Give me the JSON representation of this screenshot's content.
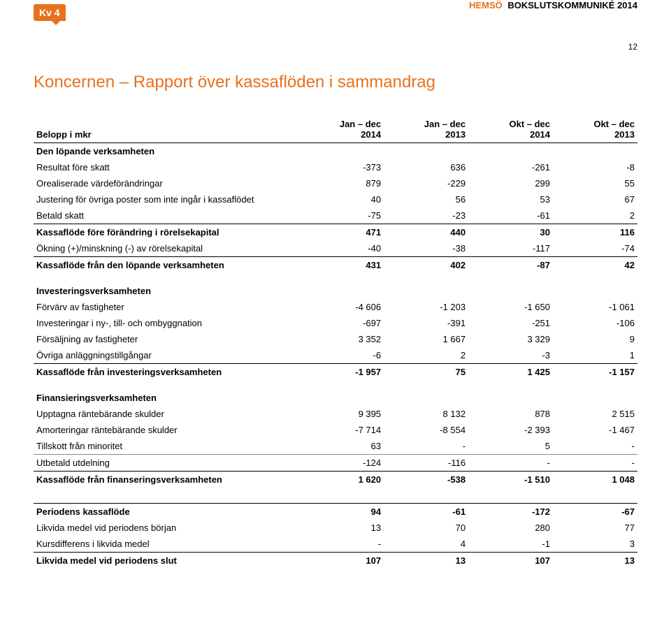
{
  "header": {
    "badge": "Kv 4",
    "company": "HEMSÖ",
    "report": "BOKSLUTSKOMMUNIKÉ 2014",
    "page_number": "12"
  },
  "title": "Koncernen – Rapport över kassaflöden i sammandrag",
  "columns": {
    "label": "Belopp i mkr",
    "c1a": "Jan – dec",
    "c1b": "2014",
    "c2a": "Jan – dec",
    "c2b": "2013",
    "c3a": "Okt – dec",
    "c3b": "2014",
    "c4a": "Okt – dec",
    "c4b": "2013"
  },
  "sections": [
    {
      "heading": "Den löpande verksamheten",
      "rows": [
        {
          "label": "Resultat före skatt",
          "v": [
            "-373",
            "636",
            "-261",
            "-8"
          ]
        },
        {
          "label": "Orealiserade värdeförändringar",
          "v": [
            "879",
            "-229",
            "299",
            "55"
          ]
        },
        {
          "label": "Justering för övriga poster som inte ingår i kassaflödet",
          "v": [
            "40",
            "56",
            "53",
            "67"
          ]
        },
        {
          "label": "Betald skatt",
          "v": [
            "-75",
            "-23",
            "-61",
            "2"
          ],
          "border_bottom": true
        },
        {
          "label": "Kassaflöde före förändring i rörelsekapital",
          "v": [
            "471",
            "440",
            "30",
            "116"
          ],
          "bold": true
        },
        {
          "label": "Ökning (+)/minskning (-) av rörelsekapital",
          "v": [
            "-40",
            "-38",
            "-117",
            "-74"
          ],
          "border_bottom": true
        },
        {
          "label": "Kassaflöde från den löpande verksamheten",
          "v": [
            "431",
            "402",
            "-87",
            "42"
          ],
          "bold": true
        }
      ]
    },
    {
      "heading": "Investeringsverksamheten",
      "rows": [
        {
          "label": "Förvärv av fastigheter",
          "v": [
            "-4 606",
            "-1 203",
            "-1 650",
            "-1 061"
          ]
        },
        {
          "label": "Investeringar i ny-, till- och ombyggnation",
          "v": [
            "-697",
            "-391",
            "-251",
            "-106"
          ]
        },
        {
          "label": "Försäljning av fastigheter",
          "v": [
            "3 352",
            "1 667",
            "3 329",
            "9"
          ]
        },
        {
          "label": "Övriga anläggningstillgångar",
          "v": [
            "-6",
            "2",
            "-3",
            "1"
          ],
          "border_bottom": true
        },
        {
          "label": "Kassaflöde från investeringsverksamheten",
          "v": [
            "-1 957",
            "75",
            "1 425",
            "-1 157"
          ],
          "bold": true
        }
      ]
    },
    {
      "heading": "Finansieringsverksamheten",
      "rows": [
        {
          "label": "Upptagna räntebärande skulder",
          "v": [
            "9 395",
            "8 132",
            "878",
            "2 515"
          ]
        },
        {
          "label": "Amorteringar räntebärande skulder",
          "v": [
            "-7 714",
            "-8 554",
            "-2 393",
            "-1 467"
          ]
        },
        {
          "label": "Tillskott från minoritet",
          "v": [
            "63",
            "-",
            "5",
            "-"
          ],
          "border_bottom_thin": true
        },
        {
          "label": "Utbetald utdelning",
          "v": [
            "-124",
            "-116",
            "-",
            "-"
          ],
          "border_bottom": true
        },
        {
          "label": "Kassaflöde från finanseringsverksamheten",
          "v": [
            "1 620",
            "-538",
            "-1 510",
            "1 048"
          ],
          "bold": true
        }
      ]
    },
    {
      "rows": [
        {
          "label": "Periodens kassaflöde",
          "v": [
            "94",
            "-61",
            "-172",
            "-67"
          ],
          "bold": true,
          "border_top": true
        },
        {
          "label": "Likvida medel vid periodens början",
          "v": [
            "13",
            "70",
            "280",
            "77"
          ]
        },
        {
          "label": "Kursdifferens i likvida medel",
          "v": [
            "-",
            "4",
            "-1",
            "3"
          ],
          "border_bottom": true
        },
        {
          "label": "Likvida medel vid periodens slut",
          "v": [
            "107",
            "13",
            "107",
            "13"
          ],
          "bold": true
        }
      ]
    }
  ]
}
